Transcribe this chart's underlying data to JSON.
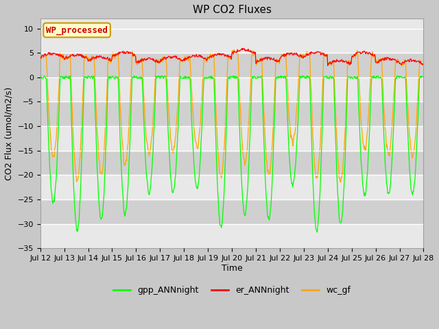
{
  "title": "WP CO2 Fluxes",
  "ylabel": "CO2 Flux (umol/m2/s)",
  "xlabel": "Time",
  "ylim": [
    -35,
    12
  ],
  "yticks": [
    -35,
    -30,
    -25,
    -20,
    -15,
    -10,
    -5,
    0,
    5,
    10
  ],
  "n_days": 16,
  "n_points_per_day": 48,
  "colors": {
    "gpp": "#00FF00",
    "er": "#FF0000",
    "wc": "#FFA500"
  },
  "legend_labels": [
    "gpp_ANNnight",
    "er_ANNnight",
    "wc_gf"
  ],
  "watermark_text": "WP_processed",
  "watermark_bg": "#FFFFCC",
  "watermark_border": "#CC9900",
  "watermark_fg": "#CC0000",
  "fig_bg": "#C8C8C8",
  "plot_bg": "#E8E8E8",
  "band_dark": "#D0D0D0",
  "band_light": "#E8E8E8",
  "grid_color": "#FFFFFF",
  "title_fontsize": 11,
  "label_fontsize": 9,
  "tick_fontsize": 8,
  "legend_fontsize": 9
}
